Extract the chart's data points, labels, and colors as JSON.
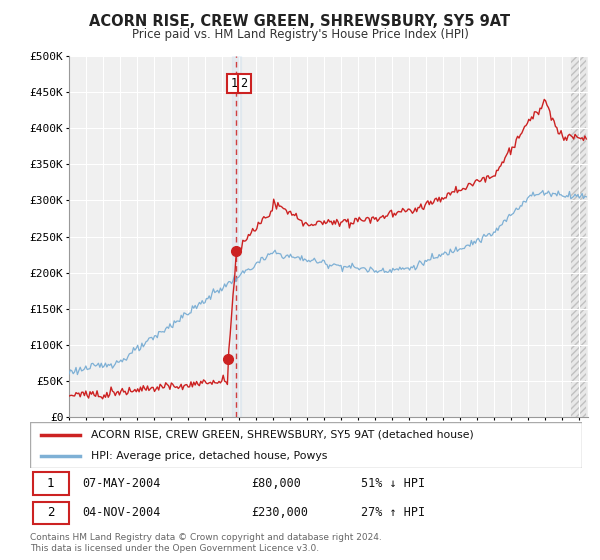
{
  "title": "ACORN RISE, CREW GREEN, SHREWSBURY, SY5 9AT",
  "subtitle": "Price paid vs. HM Land Registry's House Price Index (HPI)",
  "ylim": [
    0,
    500000
  ],
  "yticks": [
    0,
    50000,
    100000,
    150000,
    200000,
    250000,
    300000,
    350000,
    400000,
    450000,
    500000
  ],
  "xlim_start": 1995.0,
  "xlim_end": 2025.5,
  "bg_color": "#ffffff",
  "plot_bg_color": "#f0f0f0",
  "grid_color": "#ffffff",
  "hpi_color": "#7eb0d5",
  "price_color": "#cc2222",
  "transaction1_year": 2004.35,
  "transaction2_year": 2004.84,
  "transaction1_price": 80000,
  "transaction2_price": 230000,
  "vline_x": 2004.84,
  "legend_label_price": "ACORN RISE, CREW GREEN, SHREWSBURY, SY5 9AT (detached house)",
  "legend_label_hpi": "HPI: Average price, detached house, Powys",
  "table_rows": [
    {
      "num": "1",
      "date": "07-MAY-2004",
      "price": "£80,000",
      "change": "51% ↓ HPI"
    },
    {
      "num": "2",
      "date": "04-NOV-2004",
      "price": "£230,000",
      "change": "27% ↑ HPI"
    }
  ],
  "footnote": "Contains HM Land Registry data © Crown copyright and database right 2024.\nThis data is licensed under the Open Government Licence v3.0."
}
